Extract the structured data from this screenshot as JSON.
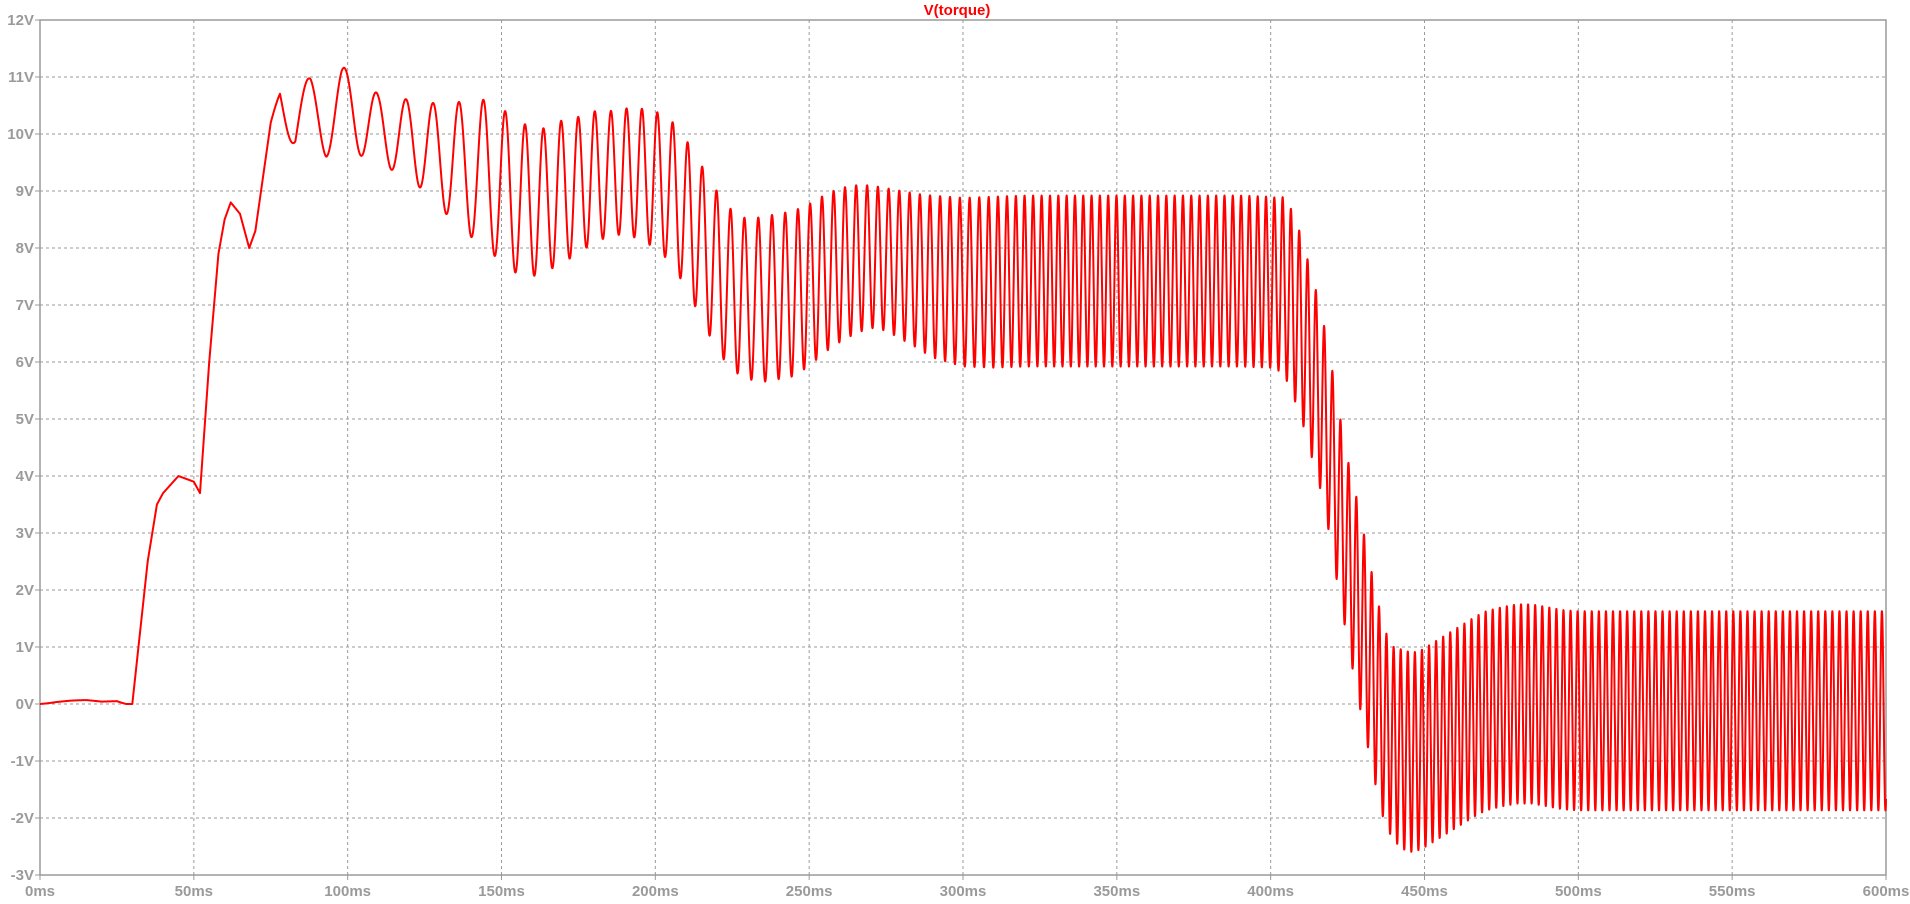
{
  "chart_data": {
    "type": "line",
    "title": "V(torque)",
    "xlabel": "",
    "ylabel": "",
    "x_unit": "ms",
    "y_unit": "V",
    "xlim": [
      0,
      600
    ],
    "ylim": [
      -3,
      12
    ],
    "x_ticks": [
      "0ms",
      "50ms",
      "100ms",
      "150ms",
      "200ms",
      "250ms",
      "300ms",
      "350ms",
      "400ms",
      "450ms",
      "500ms",
      "550ms",
      "600ms"
    ],
    "y_ticks": [
      "12V",
      "11V",
      "10V",
      "9V",
      "8V",
      "7V",
      "6V",
      "5V",
      "4V",
      "3V",
      "2V",
      "1V",
      "0V",
      "-1V",
      "-2V",
      "-3V"
    ],
    "grid": true,
    "legend": "none",
    "colors": {
      "series": "#ff0000",
      "title": "#ff0000",
      "axis": "#9a9a9a",
      "grid": "#9a9a9a",
      "background": "#ffffff"
    },
    "series": [
      {
        "name": "V(torque)",
        "x": [
          0,
          5,
          10,
          15,
          20,
          25,
          28,
          30,
          35,
          38,
          40,
          45,
          50,
          52,
          55,
          58,
          60,
          62,
          65,
          68,
          70,
          75,
          78,
          83,
          88,
          93,
          98,
          105,
          110,
          115,
          120,
          125,
          130,
          135,
          140,
          145,
          150,
          155,
          160,
          165,
          170,
          175,
          180,
          185,
          190,
          195,
          200,
          205,
          210,
          215,
          220,
          225,
          230,
          235,
          240,
          245,
          250,
          255,
          260,
          265,
          270,
          275,
          280,
          285,
          290,
          295,
          300,
          310,
          320,
          330,
          340,
          350,
          360,
          370,
          380,
          390,
          400,
          402,
          405,
          408,
          410,
          413,
          416,
          419,
          422,
          425,
          428,
          431,
          434,
          437,
          440,
          443,
          446,
          449,
          452,
          455,
          458,
          461,
          464,
          467,
          470,
          475,
          480,
          485,
          490,
          495,
          500,
          510,
          520,
          530,
          540,
          550,
          560,
          570,
          580,
          590,
          597,
          600
        ],
        "center": [
          0,
          0.02,
          0.04,
          0.05,
          0.03,
          0.05,
          0.0,
          0.0,
          2.5,
          3.5,
          3.7,
          4.0,
          3.9,
          3.7,
          6.0,
          7.9,
          8.5,
          8.8,
          8.6,
          8.0,
          8.3,
          10.2,
          10.8,
          10.0,
          10.4,
          10.4,
          10.5,
          10.25,
          10.1,
          10.0,
          9.9,
          9.8,
          9.6,
          9.5,
          9.4,
          9.3,
          9.1,
          8.9,
          8.8,
          8.85,
          9.0,
          9.1,
          9.25,
          9.3,
          9.35,
          9.3,
          9.2,
          9.0,
          8.6,
          8.1,
          7.6,
          7.25,
          7.1,
          7.1,
          7.15,
          7.2,
          7.35,
          7.55,
          7.7,
          7.8,
          7.85,
          7.8,
          7.7,
          7.6,
          7.5,
          7.45,
          7.4,
          7.4,
          7.42,
          7.42,
          7.42,
          7.42,
          7.42,
          7.42,
          7.42,
          7.42,
          7.4,
          7.38,
          7.3,
          6.9,
          6.6,
          6.0,
          5.4,
          4.6,
          3.6,
          2.7,
          1.9,
          1.1,
          0.3,
          -0.4,
          -0.7,
          -0.8,
          -0.85,
          -0.8,
          -0.7,
          -0.6,
          -0.5,
          -0.4,
          -0.3,
          -0.2,
          -0.12,
          -0.05,
          0.0,
          0.0,
          -0.05,
          -0.1,
          -0.12,
          -0.12,
          -0.12,
          -0.12,
          -0.12,
          -0.12,
          -0.12,
          -0.12,
          -0.12,
          -0.12,
          -0.12,
          -0.12
        ],
        "amplitude": [
          0,
          0.02,
          0.02,
          0.02,
          0.02,
          0.02,
          0.0,
          0.0,
          0.0,
          0.0,
          0.0,
          0.0,
          0.0,
          0.0,
          0.0,
          0.0,
          0.0,
          0.0,
          0.0,
          0.0,
          0.0,
          0.0,
          0.15,
          0.6,
          0.65,
          0.8,
          0.7,
          0.65,
          0.6,
          0.65,
          0.7,
          0.8,
          0.9,
          1.05,
          1.2,
          1.3,
          1.35,
          1.35,
          1.3,
          1.25,
          1.25,
          1.2,
          1.15,
          1.1,
          1.1,
          1.15,
          1.2,
          1.25,
          1.3,
          1.35,
          1.4,
          1.4,
          1.4,
          1.45,
          1.45,
          1.45,
          1.42,
          1.38,
          1.35,
          1.3,
          1.25,
          1.25,
          1.3,
          1.35,
          1.42,
          1.45,
          1.48,
          1.5,
          1.5,
          1.5,
          1.5,
          1.5,
          1.5,
          1.5,
          1.5,
          1.5,
          1.5,
          1.5,
          1.6,
          1.6,
          1.6,
          1.6,
          1.6,
          1.6,
          1.6,
          1.6,
          1.7,
          1.7,
          1.7,
          1.7,
          1.7,
          1.75,
          1.75,
          1.75,
          1.75,
          1.75,
          1.75,
          1.75,
          1.75,
          1.75,
          1.75,
          1.75,
          1.75,
          1.75,
          1.75,
          1.75,
          1.75,
          1.75,
          1.75,
          1.75,
          1.75,
          1.75,
          1.75,
          1.75,
          1.75,
          1.75,
          1.75,
          1.75
        ],
        "period": [
          50,
          50,
          50,
          50,
          50,
          50,
          50,
          50,
          50,
          50,
          50,
          50,
          50,
          50,
          50,
          50,
          50,
          50,
          50,
          50,
          50,
          50,
          14,
          14,
          13,
          12,
          11.5,
          10,
          10,
          9.5,
          9.0,
          8.8,
          8.5,
          8.2,
          8.0,
          7.5,
          6.8,
          6.4,
          6.0,
          5.8,
          5.6,
          5.5,
          5.3,
          5.2,
          5.0,
          5.0,
          5.0,
          5.0,
          4.8,
          4.7,
          4.6,
          4.5,
          4.5,
          4.5,
          4.3,
          4.1,
          3.9,
          3.8,
          3.7,
          3.6,
          3.5,
          3.5,
          3.4,
          3.3,
          3.3,
          3.2,
          3.2,
          3.0,
          2.8,
          2.7,
          2.7,
          2.7,
          2.7,
          2.7,
          2.7,
          2.7,
          2.7,
          2.7,
          2.7,
          2.7,
          2.7,
          2.7,
          2.7,
          2.7,
          2.6,
          2.6,
          2.5,
          2.5,
          2.4,
          2.4,
          2.3,
          2.3,
          2.3,
          2.3,
          2.3,
          2.3,
          2.3,
          2.3,
          2.3,
          2.3,
          2.3,
          2.3,
          2.3,
          2.3,
          2.3,
          2.3,
          2.3,
          2.3,
          2.3,
          2.3,
          2.3,
          2.3,
          2.3,
          2.3,
          2.3,
          2.3,
          2.3,
          2.3
        ]
      }
    ]
  }
}
